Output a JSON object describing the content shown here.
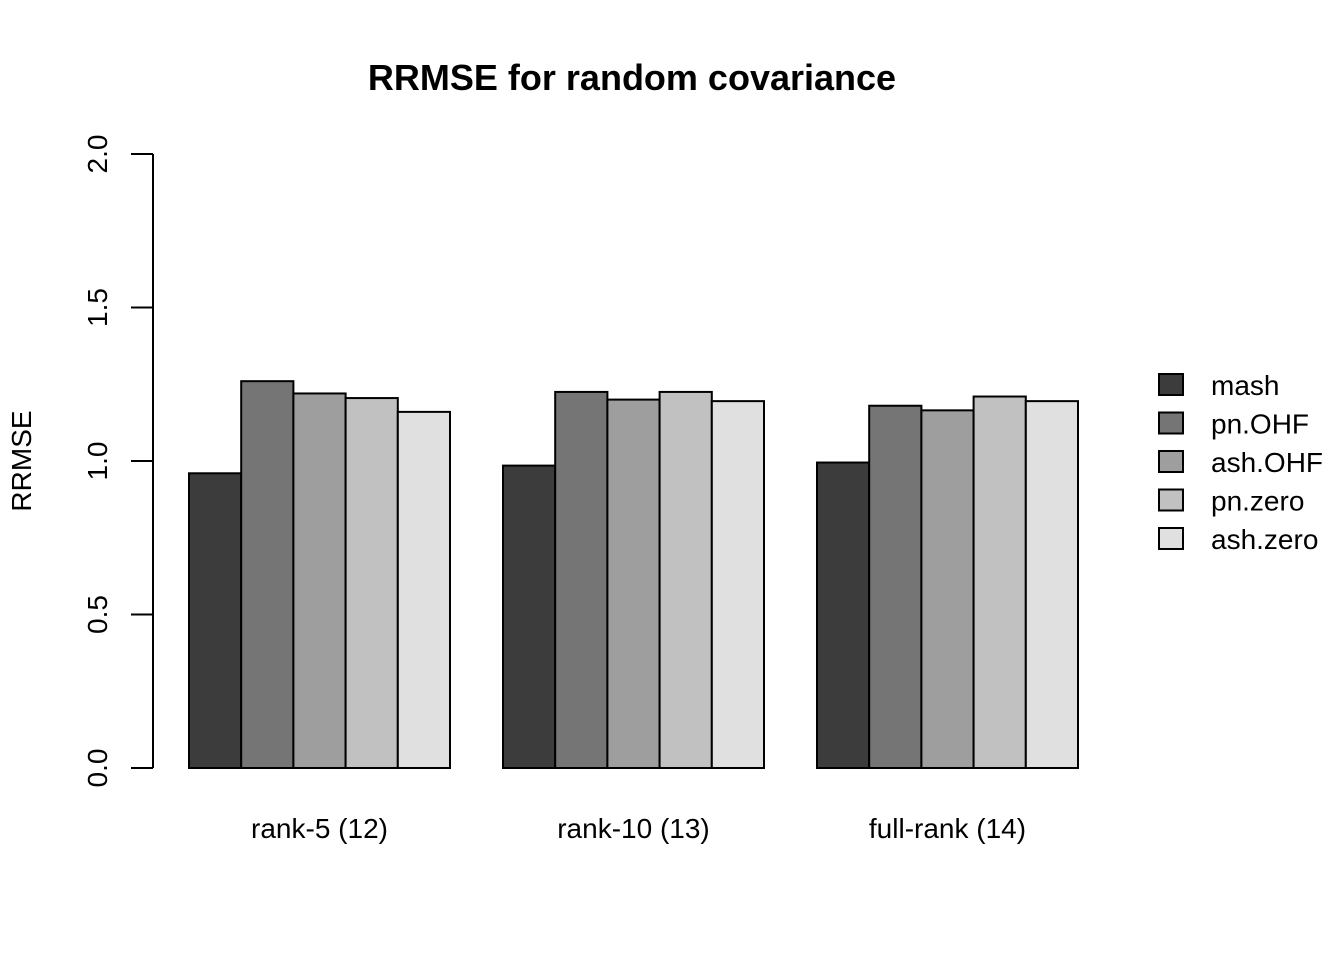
{
  "chart_data": {
    "type": "bar",
    "title": "RRMSE for random covariance",
    "xlabel": "",
    "ylabel": "RRMSE",
    "ylim": [
      0,
      2
    ],
    "yticks": [
      "0.0",
      "0.5",
      "1.0",
      "1.5",
      "2.0"
    ],
    "ytick_values": [
      0,
      0.5,
      1.0,
      1.5,
      2.0
    ],
    "categories": [
      "rank-5 (12)",
      "rank-10 (13)",
      "full-rank (14)"
    ],
    "series": [
      {
        "name": "mash",
        "color": "#3c3c3c",
        "values": [
          0.96,
          0.985,
          0.995
        ]
      },
      {
        "name": "pn.OHF",
        "color": "#757575",
        "values": [
          1.26,
          1.225,
          1.18
        ]
      },
      {
        "name": "ash.OHF",
        "color": "#9e9e9e",
        "values": [
          1.22,
          1.2,
          1.165
        ]
      },
      {
        "name": "pn.zero",
        "color": "#c1c1c1",
        "values": [
          1.205,
          1.225,
          1.21
        ]
      },
      {
        "name": "ash.zero",
        "color": "#e0e0e0",
        "values": [
          1.16,
          1.195,
          1.195
        ]
      }
    ],
    "grid": false,
    "legend_position": "right"
  }
}
